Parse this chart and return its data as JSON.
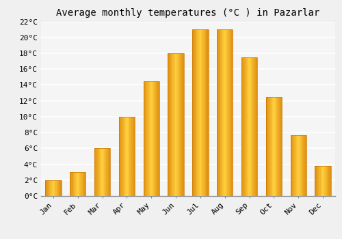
{
  "title": "Average monthly temperatures (°C ) in Pazarlar",
  "months": [
    "Jan",
    "Feb",
    "Mar",
    "Apr",
    "May",
    "Jun",
    "Jul",
    "Aug",
    "Sep",
    "Oct",
    "Nov",
    "Dec"
  ],
  "values": [
    2.0,
    3.0,
    6.0,
    10.0,
    14.5,
    18.0,
    21.0,
    21.0,
    17.5,
    12.5,
    7.7,
    3.8
  ],
  "bar_color_edge": "#E08000",
  "bar_color_center": "#FFD040",
  "bar_color_mid": "#FFA820",
  "ylim": [
    0,
    22
  ],
  "yticks": [
    0,
    2,
    4,
    6,
    8,
    10,
    12,
    14,
    16,
    18,
    20,
    22
  ],
  "background_color": "#f0f0f0",
  "plot_bg_color": "#f5f5f5",
  "grid_color": "#ffffff",
  "title_fontsize": 10,
  "tick_fontsize": 8,
  "font_family": "monospace"
}
